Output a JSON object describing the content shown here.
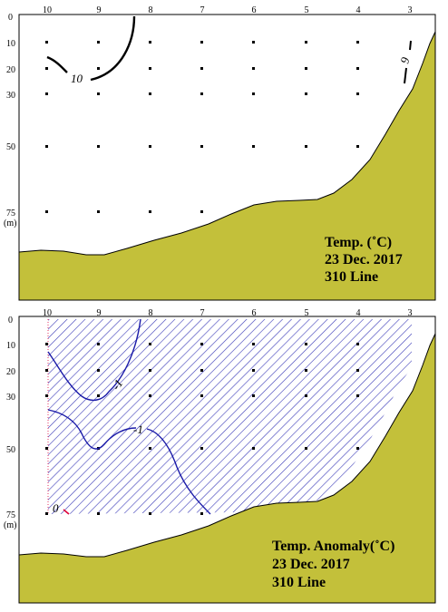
{
  "stations": [
    "10",
    "9",
    "8",
    "7",
    "6",
    "5",
    "4",
    "3"
  ],
  "depths": [
    "0",
    "10",
    "20",
    "30",
    "50",
    "75"
  ],
  "depth_unit": "(m)",
  "colors": {
    "land": "#c3c03a",
    "contour_temp": "#000000",
    "contour_anomaly": "#1a1aa8",
    "hatch": "#3a3ab8",
    "zero_line": "#e0003a"
  },
  "temperature": {
    "caption_line1": "Temp. (˚C)",
    "caption_line2": "23 Dec. 2017",
    "caption_line3": "310 Line",
    "contour_labels": [
      "10",
      "9"
    ]
  },
  "anomaly": {
    "caption_line1": "Temp. Anomaly(˚C)",
    "caption_line2": "23 Dec. 2017",
    "caption_line3": "310 Line",
    "contour_labels": [
      "-1",
      "-1",
      "0"
    ],
    "shaded_region": "negative anomaly"
  }
}
